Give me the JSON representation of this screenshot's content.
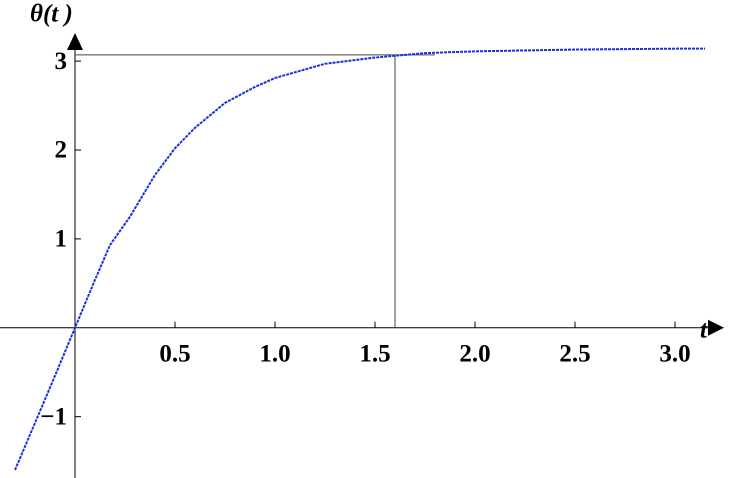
{
  "chart_data": {
    "type": "line",
    "x_label": "t",
    "y_label": "θ(t )",
    "x": [
      -0.3,
      -0.2,
      -0.1,
      0,
      0.1,
      0.175,
      0.275,
      0.4,
      0.5,
      0.6,
      0.75,
      0.9,
      1.0,
      1.25,
      1.5,
      1.75,
      2.0,
      2.5,
      3.0,
      3.15
    ],
    "series": [
      {
        "color": "#1a33d9",
        "values": [
          -1.6,
          -1.07,
          -0.54,
          0,
          0.54,
          0.93,
          1.25,
          1.72,
          2.02,
          2.25,
          2.53,
          2.71,
          2.81,
          2.97,
          3.04,
          3.09,
          3.11,
          3.13,
          3.14,
          3.14
        ]
      }
    ],
    "xlim": [
      -0.3,
      3.25
    ],
    "ylim": [
      -1.6,
      3.35
    ],
    "xticks": [
      {
        "value": 0.5,
        "label": "0.5"
      },
      {
        "value": 1,
        "label": "1.0"
      },
      {
        "value": 1.5,
        "label": "1.5"
      },
      {
        "value": 2,
        "label": "2.0"
      },
      {
        "value": 2.5,
        "label": "2.5"
      },
      {
        "value": 3,
        "label": "3.0"
      }
    ],
    "yticks": [
      {
        "value": -1,
        "label": "−1"
      },
      1,
      2,
      3
    ],
    "hline": {
      "y": 3.07,
      "xlim": [
        0,
        1.8
      ]
    },
    "vline": {
      "x": 1.6,
      "ylim": [
        0,
        3.07
      ]
    }
  }
}
